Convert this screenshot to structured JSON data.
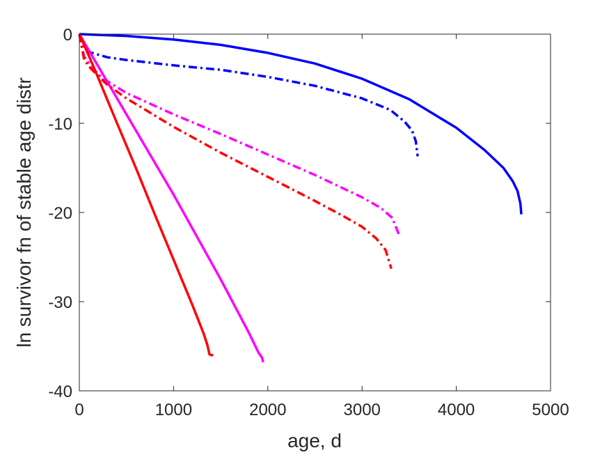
{
  "chart_data": {
    "type": "line",
    "title": "",
    "xlabel": "age, d",
    "ylabel": "ln survivor fn of stable age distr",
    "xlim": [
      0,
      5000
    ],
    "ylim": [
      -40,
      0
    ],
    "xticks": [
      0,
      1000,
      2000,
      3000,
      4000,
      5000
    ],
    "yticks": [
      0,
      -10,
      -20,
      -30,
      -40
    ],
    "xtick_labels": [
      "0",
      "1000",
      "2000",
      "3000",
      "4000",
      "5000"
    ],
    "ytick_labels": [
      "0",
      "-10",
      "-20",
      "-30",
      "-40"
    ],
    "grid": false,
    "legend": "none",
    "series": [
      {
        "color": "#0000ff",
        "style": "solid",
        "x": [
          0,
          500,
          1000,
          1500,
          2000,
          2500,
          3000,
          3500,
          4000,
          4300,
          4500,
          4600,
          4650,
          4680,
          4690
        ],
        "y": [
          0,
          -0.2,
          -0.6,
          -1.2,
          -2.1,
          -3.3,
          -5.0,
          -7.3,
          -10.5,
          -13.0,
          -15.0,
          -16.5,
          -17.6,
          -19.0,
          -20.2
        ]
      },
      {
        "color": "#0000ff",
        "style": "dashdot",
        "x": [
          0,
          50,
          100,
          300,
          500,
          1000,
          1500,
          2000,
          2500,
          3000,
          3300,
          3450,
          3530,
          3570,
          3590
        ],
        "y": [
          0,
          -1.5,
          -2.0,
          -2.6,
          -2.9,
          -3.5,
          -4.0,
          -4.8,
          -5.8,
          -7.2,
          -8.5,
          -9.8,
          -10.8,
          -12.0,
          -13.7
        ]
      },
      {
        "color": "#ff00ff",
        "style": "solid",
        "x": [
          0,
          200,
          500,
          1000,
          1500,
          1800,
          1900,
          1920,
          1940,
          1950
        ],
        "y": [
          0,
          -3.6,
          -9.0,
          -18.0,
          -27.5,
          -33.5,
          -35.7,
          -36.0,
          -36.3,
          -36.8
        ]
      },
      {
        "color": "#ff00ff",
        "style": "dashdot",
        "x": [
          0,
          50,
          100,
          200,
          300,
          500,
          1000,
          1500,
          2000,
          2500,
          3000,
          3200,
          3320,
          3400
        ],
        "y": [
          0,
          -2.5,
          -3.2,
          -4.5,
          -5.3,
          -6.6,
          -9.0,
          -11.2,
          -13.5,
          -15.8,
          -18.3,
          -19.5,
          -20.6,
          -22.7
        ]
      },
      {
        "color": "#ff0000",
        "style": "solid",
        "x": [
          0,
          100,
          200,
          400,
          600,
          800,
          1000,
          1200,
          1320,
          1360,
          1380,
          1400,
          1420
        ],
        "y": [
          0,
          -2.4,
          -4.9,
          -10.0,
          -15.0,
          -20.2,
          -25.3,
          -30.4,
          -33.6,
          -34.9,
          -35.9,
          -36.0,
          -36.0
        ]
      },
      {
        "color": "#ff0000",
        "style": "dashdot",
        "x": [
          0,
          50,
          100,
          200,
          300,
          500,
          1000,
          1500,
          2000,
          2500,
          2800,
          3000,
          3150,
          3250,
          3310
        ],
        "y": [
          0,
          -2.8,
          -3.6,
          -4.7,
          -5.7,
          -7.2,
          -10.4,
          -13.3,
          -16.0,
          -18.7,
          -20.4,
          -21.6,
          -22.9,
          -24.2,
          -26.3
        ]
      }
    ]
  }
}
